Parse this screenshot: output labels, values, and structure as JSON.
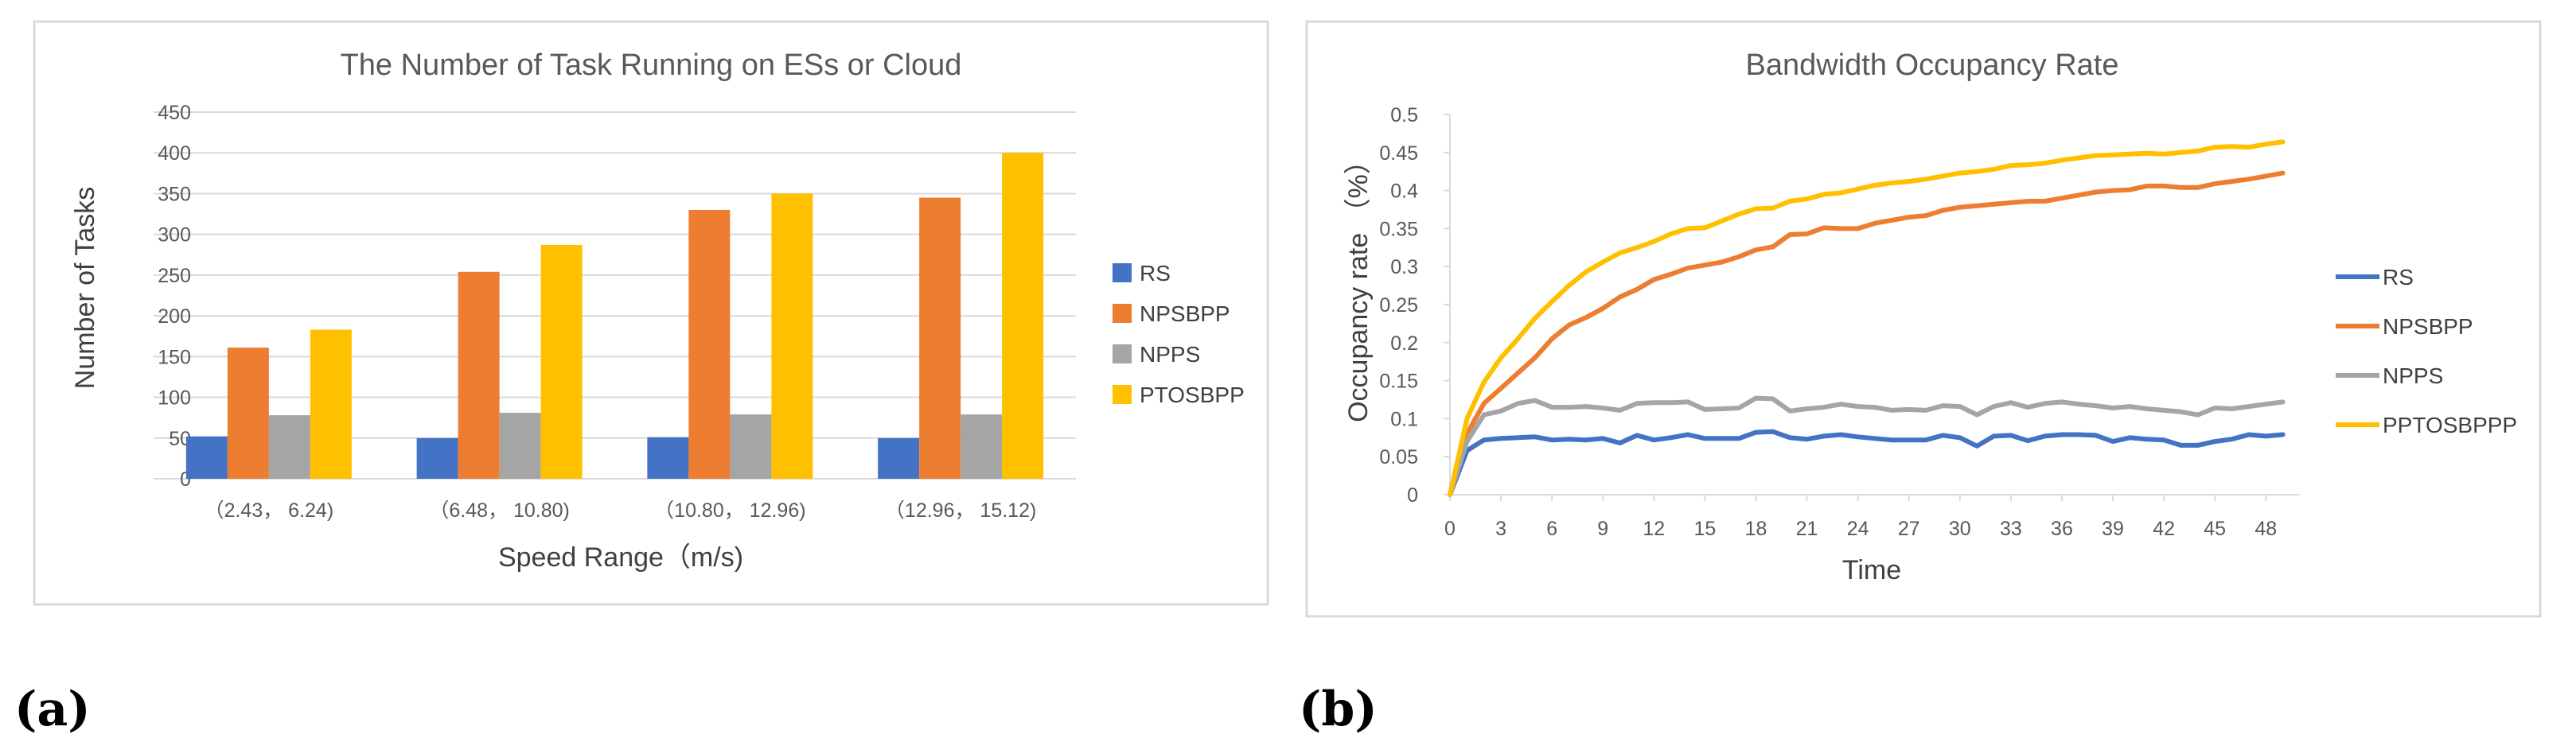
{
  "chart_data": [
    {
      "type": "bar",
      "panel_label": "(a)",
      "title": "The Number of Task Running on ESs or Cloud",
      "xlabel": "Speed Range（m/s)",
      "ylabel": "Number of Tasks",
      "ylim": [
        0,
        450
      ],
      "yticks": [
        "0",
        "50",
        "100",
        "150",
        "200",
        "250",
        "300",
        "350",
        "400",
        "450"
      ],
      "categories": [
        "（2.43， 6.24)",
        "（6.48， 10.80)",
        "（10.80， 12.96)",
        "（12.96， 15.12)"
      ],
      "legend_position": "right",
      "series": [
        {
          "name": "RS",
          "color": "#4472c4",
          "values": [
            52,
            50,
            51,
            50
          ]
        },
        {
          "name": "NPSBPP",
          "color": "#ed7d31",
          "values": [
            161,
            254,
            330,
            345
          ]
        },
        {
          "name": "NPPS",
          "color": "#a5a5a5",
          "values": [
            78,
            81,
            79,
            79
          ]
        },
        {
          "name": "PTOSBPP",
          "color": "#ffc000",
          "values": [
            183,
            287,
            350,
            400
          ]
        }
      ]
    },
    {
      "type": "line",
      "panel_label": "(b)",
      "title": "Bandwidth Occupancy Rate",
      "xlabel": "Time",
      "ylabel": "Occupancy rate （%）",
      "xlim": [
        0,
        50
      ],
      "ylim": [
        0,
        0.5
      ],
      "xticks": [
        "0",
        "3",
        "6",
        "9",
        "12",
        "15",
        "18",
        "21",
        "24",
        "27",
        "30",
        "33",
        "36",
        "39",
        "42",
        "45",
        "48"
      ],
      "yticks": [
        "0",
        "0.05",
        "0.1",
        "0.15",
        "0.2",
        "0.25",
        "0.3",
        "0.35",
        "0.4",
        "0.45",
        "0.5"
      ],
      "legend_position": "right",
      "series": [
        {
          "name": "RS",
          "color": "#4472c4",
          "values": [
            0,
            0.058,
            0.072,
            0.074,
            0.075,
            0.076,
            0.072,
            0.073,
            0.072,
            0.074,
            0.068,
            0.078,
            0.072,
            0.075,
            0.079,
            0.074,
            0.074,
            0.074,
            0.082,
            0.083,
            0.075,
            0.073,
            0.077,
            0.079,
            0.076,
            0.074,
            0.072,
            0.072,
            0.072,
            0.078,
            0.075,
            0.064,
            0.077,
            0.078,
            0.071,
            0.077,
            0.079,
            0.079,
            0.078,
            0.07,
            0.075,
            0.073,
            0.072,
            0.065,
            0.065,
            0.07,
            0.073,
            0.079,
            0.077,
            0.079
          ]
        },
        {
          "name": "NPSBPP",
          "color": "#ed7d31",
          "values": [
            0,
            0.08,
            0.12,
            0.14,
            0.16,
            0.18,
            0.205,
            0.223,
            0.233,
            0.245,
            0.26,
            0.27,
            0.283,
            0.29,
            0.298,
            0.302,
            0.306,
            0.313,
            0.322,
            0.326,
            0.342,
            0.343,
            0.351,
            0.35,
            0.35,
            0.357,
            0.361,
            0.365,
            0.367,
            0.374,
            0.378,
            0.38,
            0.382,
            0.384,
            0.386,
            0.386,
            0.39,
            0.394,
            0.398,
            0.4,
            0.401,
            0.406,
            0.406,
            0.404,
            0.404,
            0.409,
            0.412,
            0.415,
            0.419,
            0.423
          ]
        },
        {
          "name": "NPPS",
          "color": "#a5a5a5",
          "values": [
            0,
            0.07,
            0.105,
            0.11,
            0.12,
            0.124,
            0.115,
            0.115,
            0.116,
            0.114,
            0.111,
            0.12,
            0.121,
            0.121,
            0.122,
            0.112,
            0.113,
            0.114,
            0.127,
            0.126,
            0.11,
            0.113,
            0.115,
            0.119,
            0.116,
            0.115,
            0.111,
            0.112,
            0.111,
            0.117,
            0.116,
            0.105,
            0.116,
            0.121,
            0.115,
            0.12,
            0.122,
            0.119,
            0.117,
            0.114,
            0.116,
            0.113,
            0.111,
            0.109,
            0.105,
            0.114,
            0.113,
            0.116,
            0.119,
            0.122
          ]
        },
        {
          "name": "PPTOSBPPP",
          "color": "#ffc000",
          "values": [
            0,
            0.1,
            0.148,
            0.18,
            0.205,
            0.232,
            0.254,
            0.275,
            0.293,
            0.306,
            0.318,
            0.325,
            0.333,
            0.343,
            0.35,
            0.351,
            0.36,
            0.369,
            0.376,
            0.377,
            0.386,
            0.389,
            0.395,
            0.397,
            0.402,
            0.407,
            0.41,
            0.412,
            0.415,
            0.419,
            0.423,
            0.425,
            0.428,
            0.433,
            0.434,
            0.436,
            0.44,
            0.443,
            0.446,
            0.447,
            0.448,
            0.449,
            0.448,
            0.45,
            0.452,
            0.457,
            0.458,
            0.457,
            0.461,
            0.464
          ]
        }
      ]
    }
  ]
}
